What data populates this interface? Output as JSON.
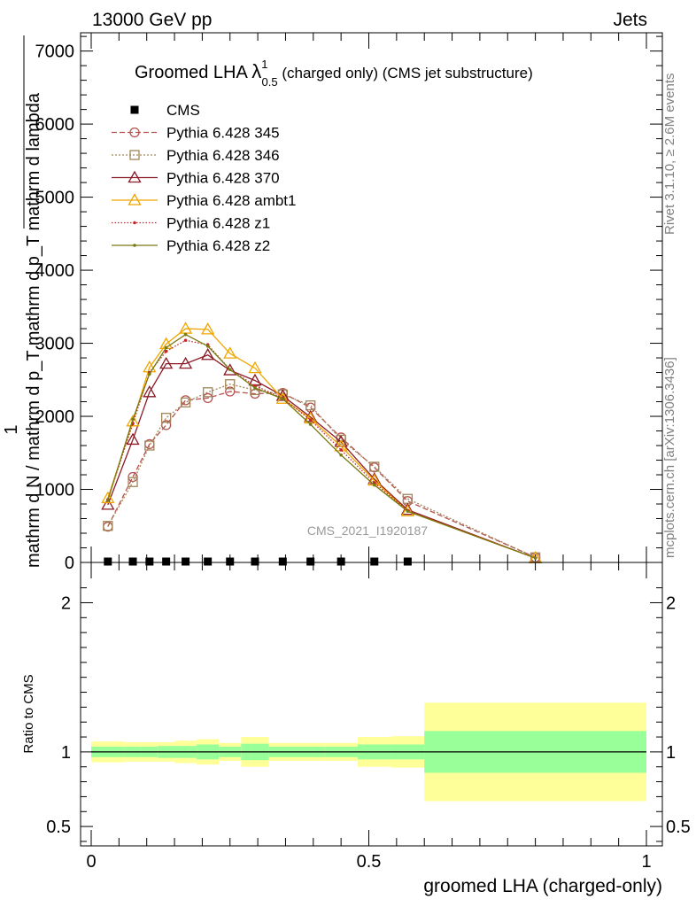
{
  "header": {
    "left": "13000 GeV pp",
    "right": "Jets"
  },
  "side_labels": {
    "rivet": "Rivet 3.1.10, ≥ 2.6M events",
    "mcplots": "mcplots.cern.ch [arXiv:1306.3436]"
  },
  "chart_data": [
    {
      "type": "line",
      "title": "Groomed LHA",
      "title_symbol": "λ",
      "title_sup": "1",
      "title_sub": "0.5",
      "title_suffix": "(charged only) (CMS jet substructure)",
      "watermark": "CMS_2021_I1920187",
      "ylabel_top": "1",
      "ylabel_bottom": "mathrm d N / mathrm d p_T mathrm d p_T mathrm d lambda",
      "ylabel_frac_num": "mathrm d^2N",
      "ylabel_frac_den": "mathrm d p_T mathrm d lambda",
      "xlim": [
        0,
        1
      ],
      "ylim": [
        0,
        7250
      ],
      "y_ticks": [
        {
          "value": 0,
          "label": "0"
        },
        {
          "value": 1000,
          "label": "1000"
        },
        {
          "value": 2000,
          "label": "2000"
        },
        {
          "value": 3000,
          "label": "3000"
        },
        {
          "value": 4000,
          "label": "4000"
        },
        {
          "value": 5000,
          "label": "5000"
        },
        {
          "value": 6000,
          "label": "6000"
        },
        {
          "value": 7000,
          "label": "7000"
        }
      ],
      "legend_position": "top-left",
      "x": [
        0.03,
        0.075,
        0.105,
        0.135,
        0.17,
        0.21,
        0.25,
        0.295,
        0.345,
        0.395,
        0.45,
        0.51,
        0.57,
        0.8
      ],
      "data_series": {
        "name": "CMS",
        "color": "#000000",
        "values": [
          0,
          0,
          0,
          0,
          0,
          0,
          0,
          0,
          0,
          0,
          0,
          0,
          0,
          0
        ]
      },
      "series": [
        {
          "name": "Pythia 6.428 345",
          "color": "#b5524f",
          "dash": "6,3",
          "marker": "circle",
          "values": [
            490,
            1170,
            1620,
            1880,
            2220,
            2250,
            2340,
            2310,
            2320,
            2120,
            1710,
            1300,
            840,
            70
          ]
        },
        {
          "name": "Pythia 6.428 346",
          "color": "#a0865a",
          "dash": "2,2",
          "marker": "square",
          "values": [
            500,
            1100,
            1600,
            1980,
            2190,
            2330,
            2440,
            2360,
            2300,
            2150,
            1680,
            1310,
            870,
            70
          ]
        },
        {
          "name": "Pythia 6.428 370",
          "color": "#8b1a26",
          "dash": "",
          "marker": "triangle",
          "values": [
            790,
            1680,
            2330,
            2720,
            2720,
            2840,
            2630,
            2490,
            2280,
            1990,
            1650,
            1140,
            720,
            60
          ]
        },
        {
          "name": "Pythia 6.428 ambt1",
          "color": "#f0a500",
          "dash": "",
          "marker": "triangle",
          "values": [
            880,
            1930,
            2670,
            2990,
            3200,
            3190,
            2860,
            2660,
            2240,
            1970,
            1590,
            1120,
            700,
            60
          ]
        },
        {
          "name": "Pythia 6.428 z1",
          "color": "#c0282c",
          "dash": "1.5,2",
          "marker": "dot",
          "values": [
            860,
            1900,
            2600,
            2890,
            3040,
            2980,
            2640,
            2420,
            2250,
            1950,
            1540,
            1090,
            710,
            60
          ]
        },
        {
          "name": "Pythia 6.428 z2",
          "color": "#7a7a10",
          "dash": "",
          "marker": "dot",
          "values": [
            850,
            1960,
            2580,
            2940,
            3120,
            2960,
            2640,
            2390,
            2240,
            1890,
            1470,
            1060,
            700,
            60
          ]
        }
      ]
    },
    {
      "type": "area",
      "ylabel": "Ratio to CMS",
      "xlabel": "groomed LHA (charged-only)",
      "xlim": [
        0,
        1
      ],
      "ylim": [
        0.37,
        2.27
      ],
      "x_ticks": [
        {
          "value": 0,
          "label": "0"
        },
        {
          "value": 0.5,
          "label": "0.5"
        },
        {
          "value": 1,
          "label": "1"
        }
      ],
      "y_ticks": [
        {
          "value": 0.5,
          "label": "0.5"
        },
        {
          "value": 1,
          "label": "1"
        },
        {
          "value": 2,
          "label": "2"
        }
      ],
      "reference": 1,
      "inner_band_color": "#99ff99",
      "outer_band_color": "#ffff99",
      "bins": [
        {
          "xlo": 0.0,
          "xhi": 0.06,
          "inner": [
            0.965,
            1.035
          ],
          "outer": [
            0.93,
            1.07
          ]
        },
        {
          "xlo": 0.06,
          "xhi": 0.09,
          "inner": [
            0.965,
            1.035
          ],
          "outer": [
            0.935,
            1.065
          ]
        },
        {
          "xlo": 0.09,
          "xhi": 0.12,
          "inner": [
            0.965,
            1.035
          ],
          "outer": [
            0.935,
            1.065
          ]
        },
        {
          "xlo": 0.12,
          "xhi": 0.15,
          "inner": [
            0.96,
            1.04
          ],
          "outer": [
            0.935,
            1.065
          ]
        },
        {
          "xlo": 0.15,
          "xhi": 0.19,
          "inner": [
            0.96,
            1.04
          ],
          "outer": [
            0.925,
            1.075
          ]
        },
        {
          "xlo": 0.19,
          "xhi": 0.23,
          "inner": [
            0.95,
            1.05
          ],
          "outer": [
            0.915,
            1.085
          ]
        },
        {
          "xlo": 0.23,
          "xhi": 0.27,
          "inner": [
            0.965,
            1.035
          ],
          "outer": [
            0.94,
            1.06
          ]
        },
        {
          "xlo": 0.27,
          "xhi": 0.32,
          "inner": [
            0.945,
            1.055
          ],
          "outer": [
            0.9,
            1.1
          ]
        },
        {
          "xlo": 0.32,
          "xhi": 0.37,
          "inner": [
            0.965,
            1.035
          ],
          "outer": [
            0.94,
            1.06
          ]
        },
        {
          "xlo": 0.37,
          "xhi": 0.42,
          "inner": [
            0.965,
            1.035
          ],
          "outer": [
            0.94,
            1.06
          ]
        },
        {
          "xlo": 0.42,
          "xhi": 0.48,
          "inner": [
            0.965,
            1.035
          ],
          "outer": [
            0.94,
            1.06
          ]
        },
        {
          "xlo": 0.48,
          "xhi": 0.54,
          "inner": [
            0.95,
            1.05
          ],
          "outer": [
            0.9,
            1.1
          ]
        },
        {
          "xlo": 0.54,
          "xhi": 0.6,
          "inner": [
            0.95,
            1.05
          ],
          "outer": [
            0.895,
            1.105
          ]
        },
        {
          "xlo": 0.6,
          "xhi": 1.0,
          "inner": [
            0.86,
            1.14
          ],
          "outer": [
            0.67,
            1.33
          ]
        }
      ]
    }
  ]
}
